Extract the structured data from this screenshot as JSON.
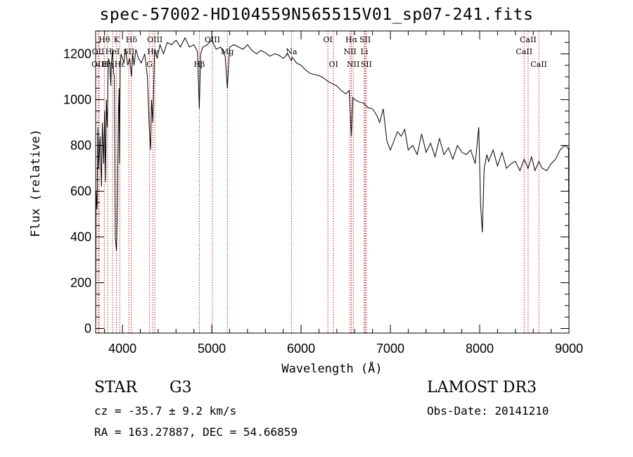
{
  "chart_data": {
    "type": "line",
    "title": "spec-57002-HD104559N565515V01_sp07-241.fits",
    "xlabel": "Wavelength (Å)",
    "ylabel": "Flux (relative)",
    "xlim": [
      3700,
      9000
    ],
    "ylim": [
      -20,
      1300
    ],
    "xticks": [
      4000,
      5000,
      6000,
      7000,
      8000,
      9000
    ],
    "yticks": [
      0,
      200,
      400,
      600,
      800,
      1000,
      1200
    ],
    "line_color": "#000000",
    "marker_color": "#cc2222",
    "spectrum": {
      "x": [
        3700,
        3705,
        3715,
        3725,
        3735,
        3750,
        3765,
        3775,
        3790,
        3800,
        3810,
        3820,
        3830,
        3838,
        3845,
        3860,
        3870,
        3875,
        3880,
        3890,
        3900,
        3910,
        3920,
        3933,
        3945,
        3955,
        3962,
        3968,
        3975,
        3985,
        4000,
        4015,
        4035,
        4060,
        4080,
        4101,
        4115,
        4130,
        4150,
        4180,
        4210,
        4250,
        4280,
        4300,
        4315,
        4325,
        4340,
        4360,
        4390,
        4420,
        4460,
        4500,
        4550,
        4600,
        4650,
        4700,
        4750,
        4800,
        4840,
        4861,
        4875,
        4900,
        4950,
        5000,
        5050,
        5100,
        5150,
        5175,
        5200,
        5250,
        5300,
        5350,
        5400,
        5450,
        5500,
        5550,
        5600,
        5650,
        5700,
        5750,
        5800,
        5850,
        5890,
        5900,
        5950,
        6000,
        6050,
        6100,
        6150,
        6200,
        6250,
        6300,
        6350,
        6400,
        6450,
        6500,
        6540,
        6563,
        6580,
        6600,
        6650,
        6700,
        6750,
        6800,
        6850,
        6880,
        6920,
        6960,
        7000,
        7040,
        7080,
        7120,
        7160,
        7200,
        7250,
        7300,
        7350,
        7400,
        7450,
        7500,
        7550,
        7600,
        7650,
        7700,
        7750,
        7800,
        7850,
        7900,
        7950,
        7990,
        8010,
        8030,
        8050,
        8080,
        8100,
        8150,
        8200,
        8250,
        8300,
        8350,
        8400,
        8450,
        8498,
        8542,
        8580,
        8620,
        8662,
        8700,
        8750,
        8800,
        8850,
        8900,
        8950,
        8990,
        8995,
        9000
      ],
      "y": [
        0,
        600,
        520,
        880,
        700,
        840,
        620,
        900,
        720,
        950,
        640,
        1000,
        880,
        1080,
        1180,
        1150,
        1060,
        1140,
        1180,
        1220,
        1120,
        1100,
        400,
        340,
        560,
        950,
        1050,
        720,
        1150,
        1200,
        1180,
        1160,
        1220,
        1150,
        1180,
        1100,
        1200,
        1150,
        1220,
        1180,
        1160,
        1200,
        1100,
        880,
        780,
        1000,
        900,
        1220,
        1180,
        1240,
        1200,
        1250,
        1240,
        1260,
        1230,
        1270,
        1230,
        1240,
        1210,
        960,
        1200,
        1230,
        1240,
        1260,
        1220,
        1230,
        1190,
        1050,
        1230,
        1240,
        1230,
        1220,
        1240,
        1215,
        1200,
        1215,
        1205,
        1190,
        1200,
        1195,
        1180,
        1200,
        1170,
        1185,
        1160,
        1150,
        1130,
        1115,
        1110,
        1105,
        1095,
        1080,
        1070,
        1060,
        1040,
        1025,
        1040,
        840,
        1010,
        1000,
        990,
        985,
        965,
        960,
        930,
        900,
        960,
        820,
        780,
        820,
        860,
        840,
        870,
        780,
        800,
        760,
        850,
        770,
        810,
        750,
        830,
        760,
        790,
        740,
        800,
        770,
        760,
        780,
        720,
        880,
        540,
        420,
        700,
        760,
        730,
        780,
        710,
        770,
        700,
        720,
        730,
        690,
        740,
        700,
        750,
        690,
        730,
        700,
        690,
        720,
        740,
        780,
        800,
        790,
        780,
        0
      ]
    },
    "line_markers": [
      {
        "label": "Hθ",
        "x": 3797,
        "row": 1
      },
      {
        "label": "OII",
        "x": 3727,
        "row": 2
      },
      {
        "label": "OIII",
        "x": 3740,
        "row": 3
      },
      {
        "label": "Hη",
        "x": 3835,
        "row": 3
      },
      {
        "label": "K",
        "x": 3934,
        "row": 1
      },
      {
        "label": "HeI",
        "x": 3889,
        "row": 2
      },
      {
        "label": "SII",
        "x": 4072,
        "row": 2
      },
      {
        "label": "Hδ",
        "x": 4101,
        "row": 1
      },
      {
        "label": "Hε",
        "x": 3970,
        "row": 3
      },
      {
        "label": "OIII",
        "x": 4363,
        "row": 1
      },
      {
        "label": "Hγ",
        "x": 4340,
        "row": 2
      },
      {
        "label": "G",
        "x": 4304,
        "row": 3
      },
      {
        "label": "OIII",
        "x": 5007,
        "row": 1
      },
      {
        "label": "Mg",
        "x": 5175,
        "row": 2
      },
      {
        "label": "Hβ",
        "x": 4861,
        "row": 3
      },
      {
        "label": "Na",
        "x": 5893,
        "row": 2
      },
      {
        "label": "OI",
        "x": 6300,
        "row": 1
      },
      {
        "label": "OI",
        "x": 6363,
        "row": 3
      },
      {
        "label": "Hα",
        "x": 6563,
        "row": 1
      },
      {
        "label": "SII",
        "x": 6717,
        "row": 1
      },
      {
        "label": "NII",
        "x": 6548,
        "row": 2
      },
      {
        "label": "Li",
        "x": 6708,
        "row": 2
      },
      {
        "label": "NII",
        "x": 6584,
        "row": 3
      },
      {
        "label": "SII",
        "x": 6731,
        "row": 3
      },
      {
        "label": "CaII",
        "x": 8542,
        "row": 1
      },
      {
        "label": "CaII",
        "x": 8498,
        "row": 2
      },
      {
        "label": "CaII",
        "x": 8662,
        "row": 3
      }
    ]
  },
  "info": {
    "object_type": "STAR",
    "subclass": "G3",
    "survey": "LAMOST DR3",
    "redshift": "cz = -35.7 ± 9.2 km/s",
    "obs_date": "Obs-Date: 20141210",
    "coords": "RA = 163.27887, DEC =  54.66859"
  }
}
